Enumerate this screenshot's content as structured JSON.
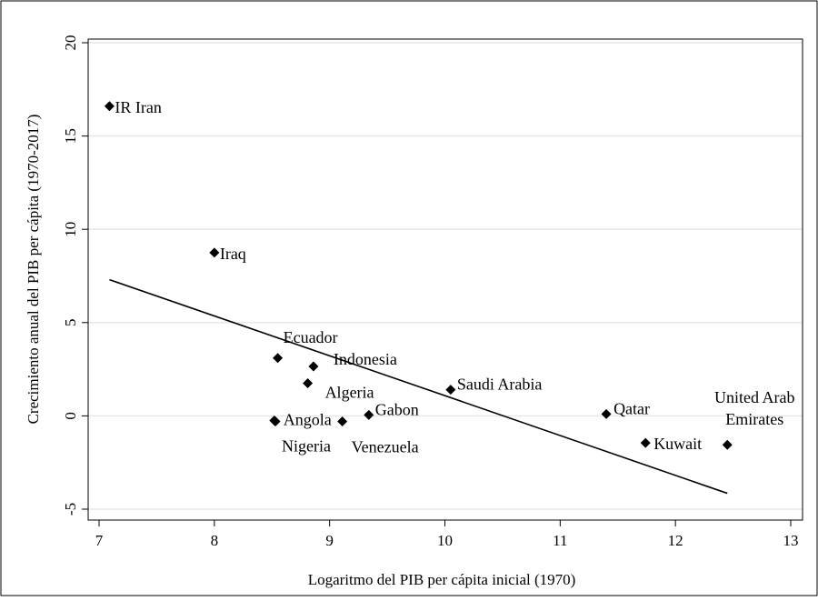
{
  "chart_data": {
    "type": "scatter",
    "title": "",
    "xlabel": "Logaritmo del PIB per cápita inicial (1970)",
    "ylabel": "Crecimiento anual del PIB per cápita (1970-2017)",
    "xlim": [
      7,
      13
    ],
    "ylim": [
      -5,
      20
    ],
    "xticks": [
      "7",
      "8",
      "9",
      "10",
      "11",
      "12",
      "13"
    ],
    "yticks": [
      "-5",
      "0",
      "5",
      "10",
      "15",
      "20"
    ],
    "grid": "horizontal",
    "points": [
      {
        "label": "IR Iran",
        "x": 7.09,
        "y": 16.6
      },
      {
        "label": "Iraq",
        "x": 8.0,
        "y": 8.75
      },
      {
        "label": "Ecuador",
        "x": 8.55,
        "y": 3.1
      },
      {
        "label": "Indonesia",
        "x": 8.86,
        "y": 2.65
      },
      {
        "label": "Algeria",
        "x": 8.81,
        "y": 1.75
      },
      {
        "label": "Angola",
        "x": 8.52,
        "y": -0.25
      },
      {
        "label": "Nigeria",
        "x": 8.53,
        "y": -0.3
      },
      {
        "label": "Venezuela",
        "x": 9.11,
        "y": -0.3
      },
      {
        "label": "Gabon",
        "x": 9.34,
        "y": 0.05
      },
      {
        "label": "Saudi Arabia",
        "x": 10.05,
        "y": 1.4
      },
      {
        "label": "Qatar",
        "x": 11.4,
        "y": 0.1
      },
      {
        "label": "Kuwait",
        "x": 11.74,
        "y": -1.45
      },
      {
        "label": "United Arab Emirates",
        "label_lines": [
          "United Arab",
          "Emirates"
        ],
        "x": 12.45,
        "y": -1.55
      }
    ],
    "trendline": {
      "x": [
        7.09,
        12.45
      ],
      "y": [
        7.3,
        -4.15
      ]
    }
  }
}
